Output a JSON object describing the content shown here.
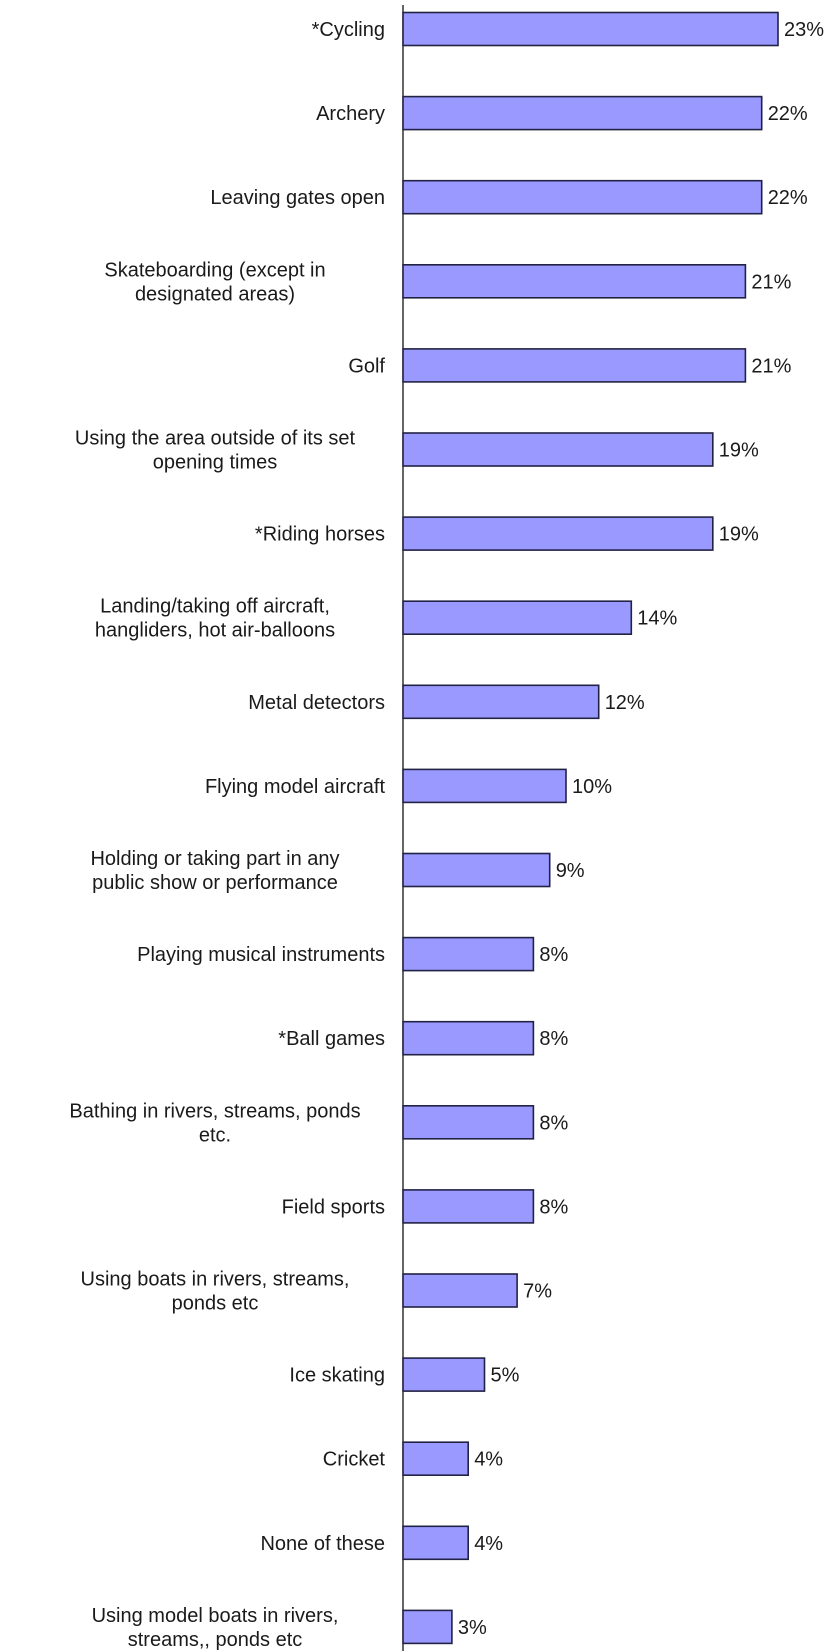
{
  "chart_data": {
    "type": "bar",
    "orientation": "horizontal",
    "title": "",
    "xlabel": "",
    "ylabel": "",
    "value_suffix": "%",
    "xlim": [
      0,
      23
    ],
    "grid": false,
    "legend": "none",
    "bar_color": "#9999ff",
    "bar_border_color": "#222244",
    "categories": [
      [
        "*Cycling"
      ],
      [
        "Archery"
      ],
      [
        "Leaving gates open"
      ],
      [
        "Skateboarding (except in",
        "designated areas)"
      ],
      [
        "Golf"
      ],
      [
        "Using the area outside of its set",
        "opening times"
      ],
      [
        "*Riding horses"
      ],
      [
        "Landing/taking off aircraft,",
        "hangliders, hot air-balloons"
      ],
      [
        "Metal detectors"
      ],
      [
        "Flying model aircraft"
      ],
      [
        "Holding or taking part in any",
        "public show or performance"
      ],
      [
        "Playing musical instruments"
      ],
      [
        "*Ball games"
      ],
      [
        "Bathing in rivers, streams, ponds",
        "etc."
      ],
      [
        "Field sports"
      ],
      [
        "Using boats in rivers, streams,",
        "ponds etc"
      ],
      [
        "Ice skating"
      ],
      [
        "Cricket"
      ],
      [
        "None of these"
      ],
      [
        "Using model boats in rivers,",
        "streams,, ponds etc"
      ]
    ],
    "values": [
      23,
      22,
      22,
      21,
      21,
      19,
      19,
      14,
      12,
      10,
      9,
      8,
      8,
      8,
      8,
      7,
      5,
      4,
      4,
      3
    ],
    "value_labels": [
      "23%",
      "22%",
      "22%",
      "21%",
      "21%",
      "19%",
      "19%",
      "14%",
      "12%",
      "10%",
      "9%",
      "8%",
      "8%",
      "8%",
      "8%",
      "7%",
      "5%",
      "4%",
      "4%",
      "3%"
    ]
  }
}
